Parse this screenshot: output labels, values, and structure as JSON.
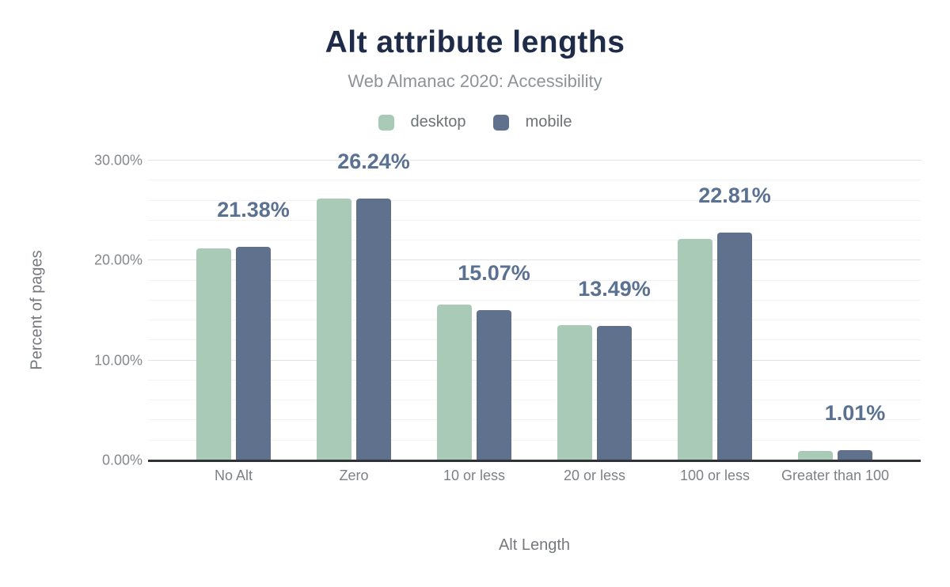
{
  "header": {
    "title": "Alt attribute lengths",
    "subtitle": "Web Almanac 2020: Accessibility"
  },
  "chart_data": {
    "type": "bar",
    "title": "Alt attribute lengths",
    "subtitle": "Web Almanac 2020: Accessibility",
    "xlabel": "Alt Length",
    "ylabel": "Percent of pages",
    "categories": [
      "No Alt",
      "Zero",
      "10 or less",
      "20 or less",
      "100 or less",
      "Greater than 100"
    ],
    "series": [
      {
        "name": "desktop",
        "color": "#a8cab7",
        "values": [
          21.2,
          26.2,
          15.6,
          13.5,
          22.2,
          0.95
        ]
      },
      {
        "name": "mobile",
        "color": "#5f718c",
        "values": [
          21.38,
          26.24,
          15.07,
          13.49,
          22.81,
          1.01
        ]
      }
    ],
    "data_labels": [
      "21.38%",
      "26.24%",
      "15.07%",
      "13.49%",
      "22.81%",
      "1.01%"
    ],
    "data_labels_series": "mobile",
    "y_ticks": [
      "0.00%",
      "10.00%",
      "20.00%",
      "30.00%"
    ],
    "ylim": [
      0,
      30
    ],
    "grid": {
      "minor_step": 2,
      "major_step": 10,
      "minor_on": true
    },
    "legend_position": "top",
    "colors": {
      "title": "#1e2b49",
      "subtitle": "#8f9398",
      "data_label": "#5a7191",
      "axis_text": "#85888c",
      "axis_title": "#75787d",
      "baseline": "#2f3338"
    }
  }
}
